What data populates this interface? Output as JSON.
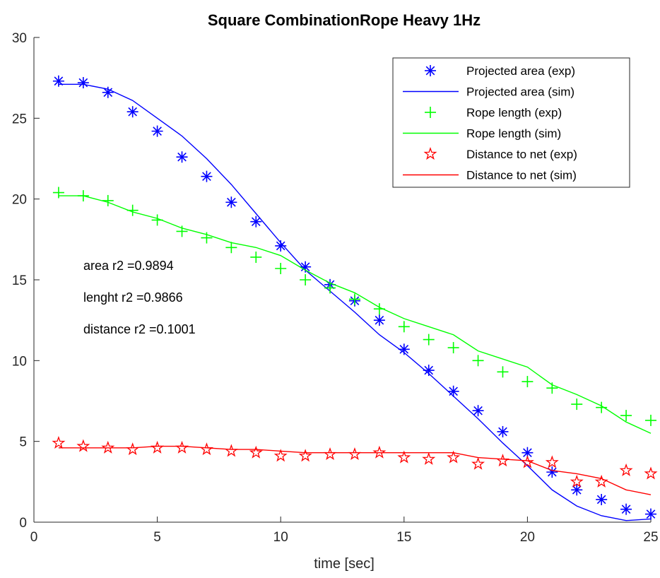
{
  "chart_data": {
    "type": "line",
    "title": "Square CombinationRope Heavy 1Hz",
    "xlabel": "time [sec]",
    "ylabel": "",
    "xlim": [
      0,
      25
    ],
    "ylim": [
      0,
      30
    ],
    "xticks": [
      0,
      5,
      10,
      15,
      20,
      25
    ],
    "yticks": [
      0,
      5,
      10,
      15,
      20,
      25,
      30
    ],
    "grid": false,
    "legend_position": "top-right",
    "annotations": [
      "area r2 =0.9894",
      "lenght r2 =0.9866",
      "distance r2 =0.1001"
    ],
    "series": [
      {
        "name": "Projected area (exp)",
        "kind": "marker",
        "marker": "asterisk",
        "color": "#0000ff",
        "x": [
          1,
          2,
          3,
          4,
          5,
          6,
          7,
          8,
          9,
          10,
          11,
          12,
          13,
          14,
          15,
          16,
          17,
          18,
          19,
          20,
          21,
          22,
          23,
          24,
          25
        ],
        "y": [
          27.3,
          27.2,
          26.6,
          25.4,
          24.2,
          22.6,
          21.4,
          19.8,
          18.6,
          17.1,
          15.8,
          14.7,
          13.7,
          12.5,
          10.7,
          9.4,
          8.1,
          6.9,
          5.6,
          4.3,
          3.1,
          2.0,
          1.4,
          0.8,
          0.5
        ]
      },
      {
        "name": "Projected area (sim)",
        "kind": "line",
        "color": "#0000ff",
        "x": [
          1,
          2,
          3,
          4,
          5,
          6,
          7,
          8,
          9,
          10,
          11,
          12,
          13,
          14,
          15,
          16,
          17,
          18,
          19,
          20,
          21,
          22,
          23,
          24,
          25
        ],
        "y": [
          27.1,
          27.1,
          26.8,
          26.1,
          25.0,
          23.9,
          22.5,
          20.9,
          19.1,
          17.3,
          15.6,
          14.3,
          13.0,
          11.6,
          10.5,
          9.2,
          7.8,
          6.4,
          4.9,
          3.5,
          2.0,
          1.0,
          0.4,
          0.1,
          0.2
        ]
      },
      {
        "name": "Rope length (exp)",
        "kind": "marker",
        "marker": "plus",
        "color": "#00ff00",
        "x": [
          1,
          2,
          3,
          4,
          5,
          6,
          7,
          8,
          9,
          10,
          11,
          12,
          13,
          14,
          15,
          16,
          17,
          18,
          19,
          20,
          21,
          22,
          23,
          24,
          25
        ],
        "y": [
          20.4,
          20.2,
          19.9,
          19.3,
          18.7,
          18.0,
          17.6,
          17.0,
          16.4,
          15.7,
          15.0,
          14.5,
          13.8,
          13.2,
          12.1,
          11.3,
          10.8,
          10.0,
          9.3,
          8.7,
          8.3,
          7.3,
          7.1,
          6.6,
          6.3
        ]
      },
      {
        "name": "Rope length (sim)",
        "kind": "line",
        "color": "#00ff00",
        "x": [
          1,
          2,
          3,
          4,
          5,
          6,
          7,
          8,
          9,
          10,
          11,
          12,
          13,
          14,
          15,
          16,
          17,
          18,
          19,
          20,
          21,
          22,
          23,
          24,
          25
        ],
        "y": [
          20.2,
          20.2,
          19.8,
          19.2,
          18.8,
          18.2,
          17.8,
          17.3,
          17.0,
          16.5,
          15.6,
          14.8,
          14.2,
          13.3,
          12.6,
          12.1,
          11.6,
          10.6,
          10.1,
          9.6,
          8.5,
          7.9,
          7.2,
          6.2,
          5.5
        ]
      },
      {
        "name": "Distance to net (exp)",
        "kind": "marker",
        "marker": "pentagram",
        "color": "#ff0000",
        "x": [
          1,
          2,
          3,
          4,
          5,
          6,
          7,
          8,
          9,
          10,
          11,
          12,
          13,
          14,
          15,
          16,
          17,
          18,
          19,
          20,
          21,
          22,
          23,
          24,
          25
        ],
        "y": [
          4.9,
          4.7,
          4.6,
          4.5,
          4.6,
          4.6,
          4.5,
          4.4,
          4.3,
          4.1,
          4.1,
          4.2,
          4.2,
          4.3,
          4.0,
          3.9,
          4.0,
          3.6,
          3.8,
          3.7,
          3.7,
          2.5,
          2.5,
          3.2,
          3.0
        ]
      },
      {
        "name": "Distance to net (sim)",
        "kind": "line",
        "color": "#ff0000",
        "x": [
          1,
          2,
          3,
          4,
          5,
          6,
          7,
          8,
          9,
          10,
          11,
          12,
          13,
          14,
          15,
          16,
          17,
          18,
          19,
          20,
          21,
          22,
          23,
          24,
          25
        ],
        "y": [
          4.6,
          4.6,
          4.6,
          4.6,
          4.7,
          4.7,
          4.6,
          4.5,
          4.5,
          4.4,
          4.3,
          4.3,
          4.3,
          4.3,
          4.3,
          4.3,
          4.3,
          4.0,
          3.9,
          3.8,
          3.2,
          3.0,
          2.7,
          2.0,
          1.7
        ]
      }
    ]
  }
}
